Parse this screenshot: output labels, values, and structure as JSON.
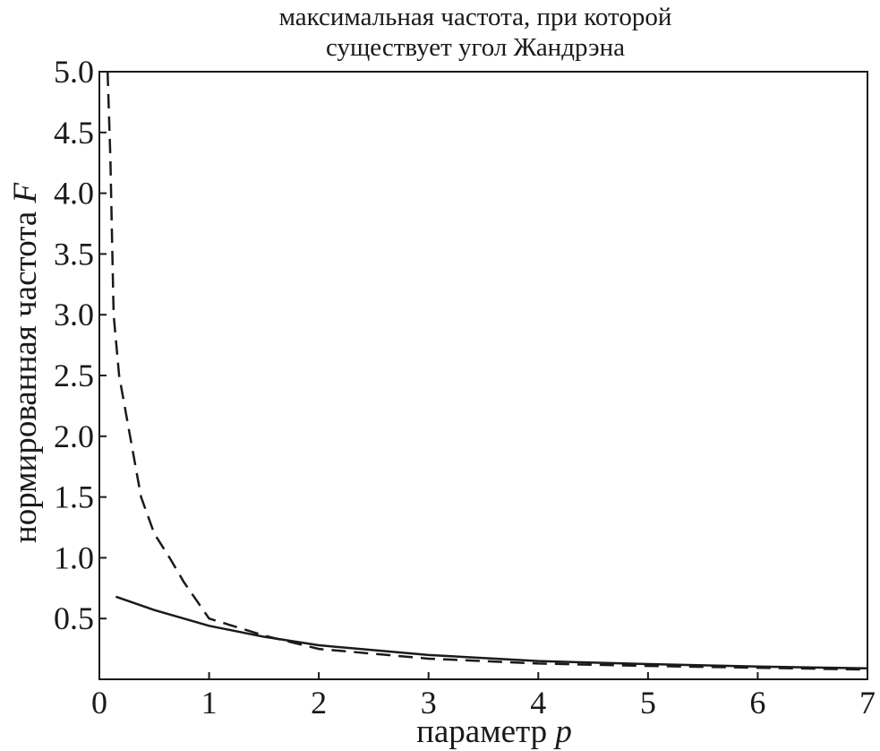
{
  "chart_data": {
    "type": "line",
    "title": [
      "максимальная частота, при которой",
      "существует угол Жандрэна"
    ],
    "xlabel": [
      "параметр",
      "p"
    ],
    "ylabel": [
      "нормированная частота",
      "F"
    ],
    "xlim": [
      0,
      7
    ],
    "ylim": [
      0,
      5
    ],
    "xticks": [
      0,
      1,
      2,
      3,
      4,
      5,
      6,
      7
    ],
    "yticks": [
      0.5,
      {
        "value": 1,
        "label": "1.0"
      },
      1.5,
      {
        "value": 2,
        "label": "2.0"
      },
      2.5,
      {
        "value": 3,
        "label": "3.0"
      },
      3.5,
      {
        "value": 4,
        "label": "4.0"
      },
      4.5,
      {
        "value": 5,
        "label": "5.0"
      }
    ],
    "series": [
      {
        "color": "#1a1a1a",
        "dashed": false,
        "x": [
          0.15,
          0.5,
          1,
          1.5,
          2,
          3,
          4,
          5,
          6,
          7
        ],
        "values": [
          0.68,
          0.57,
          0.44,
          0.35,
          0.28,
          0.2,
          0.15,
          0.125,
          0.105,
          0.09
        ]
      },
      {
        "color": "#1a1a1a",
        "dashed": true,
        "x": [
          0.075,
          0.1,
          0.13,
          0.18,
          0.28,
          0.38,
          0.5,
          0.64,
          0.77,
          1,
          1.5,
          2,
          3,
          4,
          5,
          6,
          7
        ],
        "values": [
          5.0,
          4.3,
          3.0,
          2.5,
          2.0,
          1.5,
          1.2,
          1.0,
          0.8,
          0.5,
          0.36,
          0.25,
          0.17,
          0.13,
          0.11,
          0.095,
          0.08
        ]
      }
    ]
  }
}
